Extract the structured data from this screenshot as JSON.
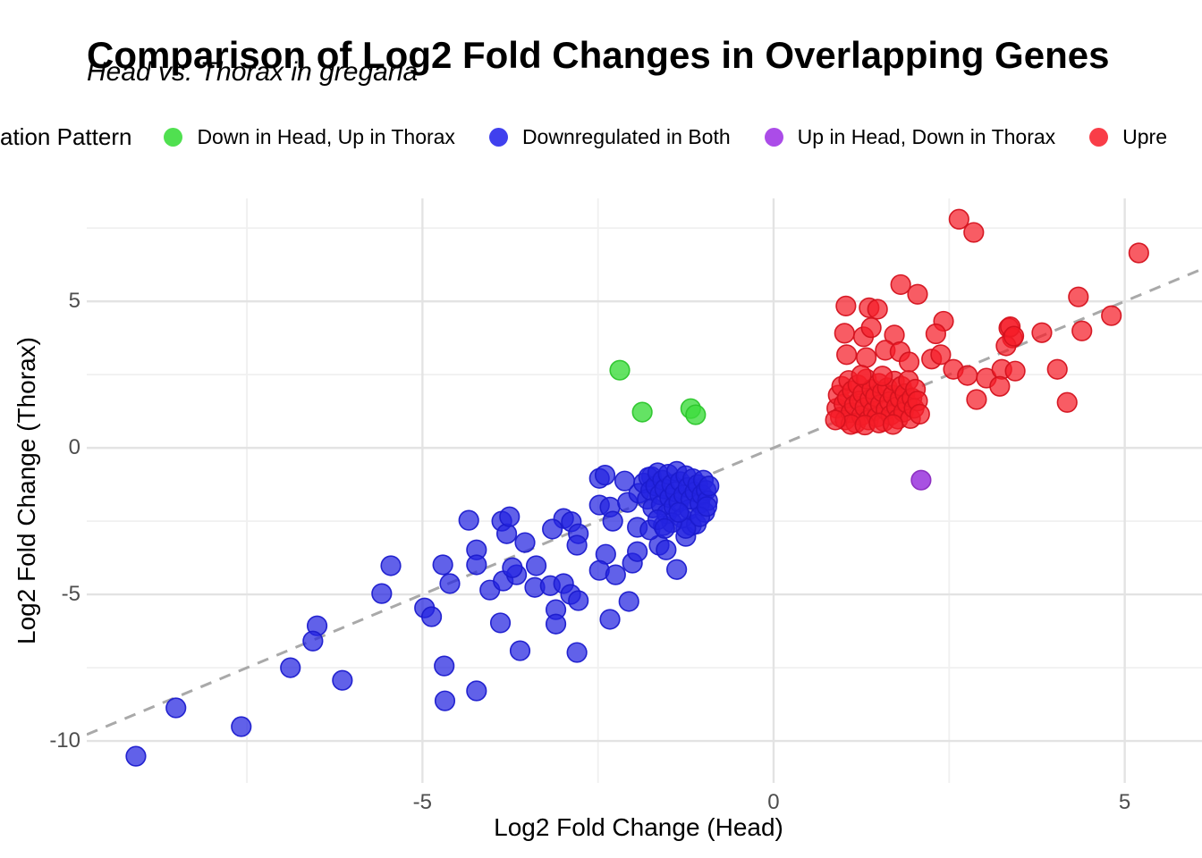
{
  "title": "Comparison of Log2 Fold Changes in Overlapping Genes",
  "subtitle": "Head vs. Thorax in gregaria",
  "legend": {
    "title": "ation Pattern",
    "items": [
      {
        "label": "Down in Head, Up in Thorax",
        "color": "#50e050"
      },
      {
        "label": "Downregulated in Both",
        "color": "#4040ee"
      },
      {
        "label": "Up in Head, Down in Thorax",
        "color": "#ab4ce8"
      },
      {
        "label": "Upre",
        "color": "#f93d48"
      }
    ]
  },
  "axes": {
    "xlabel": "Log2 Fold Change (Head)",
    "ylabel": "Log2 Fold Change (Thorax)"
  },
  "chart_data": {
    "type": "scatter",
    "title": "Comparison of Log2 Fold Changes in Overlapping Genes",
    "subtitle": "Head vs. Thorax in gregaria",
    "xlabel": "Log2 Fold Change (Head)",
    "ylabel": "Log2 Fold Change (Thorax)",
    "xlim": [
      -9.78,
      6.1
    ],
    "ylim": [
      -11.43,
      8.51
    ],
    "x_ticks": [
      -5,
      0,
      5
    ],
    "y_ticks": [
      5,
      0,
      -5,
      -10
    ],
    "x_minor": [
      -7.5,
      -2.5,
      2.5
    ],
    "y_minor": [
      7.5,
      2.5,
      -2.5,
      -7.5
    ],
    "grid": "on",
    "legend_position": "top",
    "identity_line": {
      "type": "dashed",
      "slope": 1,
      "intercept": 0,
      "color": "#a9a9a9"
    },
    "marker_radius": 10.8,
    "series": [
      {
        "name": "Down in Head, Up in Thorax",
        "fill": "#3ddc3d",
        "stroke": "#2cc52c",
        "fill_opacity": 0.8,
        "points": [
          [
            -2.19,
            2.65
          ],
          [
            -1.87,
            1.22
          ],
          [
            -1.18,
            1.34
          ],
          [
            -1.11,
            1.13
          ]
        ]
      },
      {
        "name": "Downregulated in Both",
        "fill": "#2424e0",
        "stroke": "#1b1bcd",
        "fill_opacity": 0.72,
        "points": [
          [
            -9.08,
            -10.52
          ],
          [
            -8.51,
            -8.87
          ],
          [
            -7.58,
            -9.51
          ],
          [
            -6.88,
            -7.5
          ],
          [
            -6.5,
            -6.07
          ],
          [
            -6.56,
            -6.59
          ],
          [
            -6.14,
            -7.93
          ],
          [
            -5.45,
            -4.02
          ],
          [
            -5.58,
            -4.97
          ],
          [
            -4.97,
            -5.46
          ],
          [
            -4.87,
            -5.76
          ],
          [
            -4.69,
            -7.44
          ],
          [
            -4.68,
            -8.63
          ],
          [
            -4.23,
            -8.29
          ],
          [
            -4.34,
            -2.47
          ],
          [
            -3.87,
            -2.5
          ],
          [
            -3.8,
            -2.93
          ],
          [
            -4.23,
            -3.48
          ],
          [
            -4.23,
            -3.99
          ],
          [
            -4.71,
            -3.99
          ],
          [
            -4.61,
            -4.63
          ],
          [
            -4.04,
            -4.85
          ],
          [
            -3.85,
            -4.54
          ],
          [
            -3.66,
            -4.33
          ],
          [
            -3.72,
            -4.09
          ],
          [
            -3.38,
            -4.02
          ],
          [
            -3.4,
            -4.76
          ],
          [
            -3.18,
            -4.7
          ],
          [
            -2.99,
            -4.63
          ],
          [
            -2.89,
            -5.0
          ],
          [
            -2.78,
            -5.21
          ],
          [
            -3.1,
            -5.52
          ],
          [
            -3.1,
            -6.01
          ],
          [
            -3.89,
            -5.97
          ],
          [
            -3.61,
            -6.92
          ],
          [
            -2.8,
            -6.98
          ],
          [
            -2.33,
            -5.85
          ],
          [
            -3.76,
            -2.35
          ],
          [
            -3.54,
            -3.23
          ],
          [
            -2.06,
            -5.24
          ],
          [
            -1.38,
            -4.15
          ],
          [
            -2.48,
            -1.04
          ],
          [
            -2.4,
            -0.93
          ],
          [
            -2.12,
            -1.13
          ],
          [
            -1.74,
            -0.98
          ],
          [
            -2.48,
            -1.95
          ],
          [
            -2.33,
            -2.02
          ],
          [
            -2.08,
            -1.86
          ],
          [
            -2.29,
            -2.5
          ],
          [
            -2.99,
            -2.41
          ],
          [
            -2.88,
            -2.52
          ],
          [
            -3.15,
            -2.77
          ],
          [
            -2.78,
            -2.93
          ],
          [
            -2.8,
            -3.32
          ],
          [
            -2.39,
            -3.63
          ],
          [
            -2.48,
            -4.18
          ],
          [
            -2.25,
            -4.33
          ],
          [
            -2.01,
            -3.93
          ],
          [
            -1.94,
            -3.54
          ],
          [
            -1.63,
            -3.32
          ],
          [
            -1.53,
            -3.48
          ],
          [
            -1.94,
            -2.71
          ],
          [
            -1.76,
            -2.8
          ],
          [
            -1.57,
            -2.65
          ],
          [
            -1.25,
            -3.02
          ],
          [
            -1.17,
            -2.65
          ],
          [
            -1.92,
            -1.55
          ],
          [
            -1.85,
            -1.2
          ],
          [
            -1.8,
            -1.75
          ],
          [
            -1.78,
            -1.0
          ],
          [
            -1.75,
            -1.45
          ],
          [
            -1.72,
            -2.05
          ],
          [
            -1.68,
            -1.3
          ],
          [
            -1.65,
            -0.85
          ],
          [
            -1.62,
            -1.6
          ],
          [
            -1.6,
            -1.95
          ],
          [
            -1.58,
            -1.1
          ],
          [
            -1.55,
            -1.4
          ],
          [
            -1.52,
            -2.25
          ],
          [
            -1.5,
            -0.9
          ],
          [
            -1.48,
            -1.7
          ],
          [
            -1.45,
            -1.25
          ],
          [
            -1.42,
            -2.0
          ],
          [
            -1.4,
            -1.5
          ],
          [
            -1.38,
            -0.8
          ],
          [
            -1.35,
            -1.85
          ],
          [
            -1.33,
            -1.15
          ],
          [
            -1.3,
            -2.4
          ],
          [
            -1.28,
            -1.6
          ],
          [
            -1.25,
            -0.95
          ],
          [
            -1.22,
            -1.35
          ],
          [
            -1.2,
            -2.1
          ],
          [
            -1.18,
            -1.75
          ],
          [
            -1.15,
            -1.05
          ],
          [
            -1.12,
            -1.5
          ],
          [
            -1.1,
            -2.6
          ],
          [
            -1.08,
            -1.25
          ],
          [
            -1.05,
            -1.9
          ],
          [
            -1.02,
            -1.6
          ],
          [
            -1.0,
            -1.1
          ],
          [
            -0.98,
            -2.2
          ],
          [
            -0.96,
            -1.45
          ],
          [
            -0.94,
            -1.8
          ],
          [
            -0.92,
            -1.3
          ],
          [
            -1.25,
            -2.75
          ],
          [
            -1.45,
            -2.55
          ],
          [
            -1.65,
            -2.45
          ],
          [
            -1.05,
            -2.35
          ],
          [
            -0.95,
            -2.0
          ],
          [
            -1.35,
            -2.2
          ],
          [
            -1.55,
            -2.75
          ]
        ]
      },
      {
        "name": "Up in Head, Down in Thorax",
        "fill": "#9933dd",
        "stroke": "#8a2bc0",
        "fill_opacity": 0.85,
        "points": [
          [
            2.1,
            -1.1
          ]
        ]
      },
      {
        "name": "Upregulated in Both",
        "fill": "#f51d28",
        "stroke": "#d4121e",
        "fill_opacity": 0.72,
        "points": [
          [
            2.64,
            7.8
          ],
          [
            2.85,
            7.35
          ],
          [
            5.2,
            6.65
          ],
          [
            1.81,
            5.57
          ],
          [
            2.05,
            5.24
          ],
          [
            1.03,
            4.84
          ],
          [
            1.36,
            4.78
          ],
          [
            1.48,
            4.73
          ],
          [
            4.34,
            5.15
          ],
          [
            4.81,
            4.51
          ],
          [
            4.39,
            3.99
          ],
          [
            3.82,
            3.93
          ],
          [
            3.35,
            4.09
          ],
          [
            3.4,
            3.75
          ],
          [
            3.31,
            3.48
          ],
          [
            1.01,
            3.91
          ],
          [
            1.28,
            3.79
          ],
          [
            1.39,
            4.1
          ],
          [
            1.72,
            3.85
          ],
          [
            2.42,
            4.32
          ],
          [
            2.31,
            3.89
          ],
          [
            3.37,
            4.13
          ],
          [
            3.42,
            3.81
          ],
          [
            4.04,
            2.68
          ],
          [
            4.18,
            1.55
          ],
          [
            1.04,
            3.18
          ],
          [
            1.32,
            3.08
          ],
          [
            1.59,
            3.33
          ],
          [
            1.8,
            3.28
          ],
          [
            1.93,
            2.93
          ],
          [
            2.25,
            3.03
          ],
          [
            2.38,
            3.18
          ],
          [
            2.56,
            2.68
          ],
          [
            2.76,
            2.47
          ],
          [
            3.03,
            2.38
          ],
          [
            3.25,
            2.68
          ],
          [
            3.44,
            2.62
          ],
          [
            2.89,
            1.65
          ],
          [
            3.22,
            2.1
          ],
          [
            0.9,
            1.35
          ],
          [
            0.92,
            1.8
          ],
          [
            0.95,
            1.05
          ],
          [
            0.97,
            2.1
          ],
          [
            1.0,
            1.5
          ],
          [
            1.02,
            0.95
          ],
          [
            1.05,
            1.7
          ],
          [
            1.07,
            2.3
          ],
          [
            1.1,
            1.2
          ],
          [
            1.12,
            1.95
          ],
          [
            1.15,
            1.45
          ],
          [
            1.17,
            0.85
          ],
          [
            1.2,
            2.15
          ],
          [
            1.22,
            1.6
          ],
          [
            1.25,
            1.1
          ],
          [
            1.27,
            1.85
          ],
          [
            1.3,
            1.38
          ],
          [
            1.32,
            2.35
          ],
          [
            1.35,
            0.95
          ],
          [
            1.37,
            1.65
          ],
          [
            1.4,
            2.0
          ],
          [
            1.42,
            1.25
          ],
          [
            1.45,
            1.75
          ],
          [
            1.47,
            1.05
          ],
          [
            1.5,
            2.2
          ],
          [
            1.52,
            1.48
          ],
          [
            1.55,
            1.9
          ],
          [
            1.57,
            0.9
          ],
          [
            1.6,
            1.3
          ],
          [
            1.62,
            2.05
          ],
          [
            1.65,
            1.58
          ],
          [
            1.67,
            1.12
          ],
          [
            1.7,
            1.8
          ],
          [
            1.72,
            2.28
          ],
          [
            1.75,
            1.4
          ],
          [
            1.77,
            0.98
          ],
          [
            1.8,
            1.68
          ],
          [
            1.82,
            2.1
          ],
          [
            1.85,
            1.22
          ],
          [
            1.87,
            1.85
          ],
          [
            1.9,
            1.52
          ],
          [
            1.92,
            2.3
          ],
          [
            1.95,
            1.0
          ],
          [
            1.97,
            1.7
          ],
          [
            2.0,
            1.35
          ],
          [
            2.02,
            2.0
          ],
          [
            2.05,
            1.6
          ],
          [
            2.08,
            1.15
          ],
          [
            1.1,
            0.8
          ],
          [
            1.3,
            0.78
          ],
          [
            0.88,
            0.95
          ],
          [
            1.5,
            0.85
          ],
          [
            1.7,
            0.8
          ],
          [
            1.25,
            2.48
          ],
          [
            1.55,
            2.45
          ]
        ]
      }
    ]
  }
}
